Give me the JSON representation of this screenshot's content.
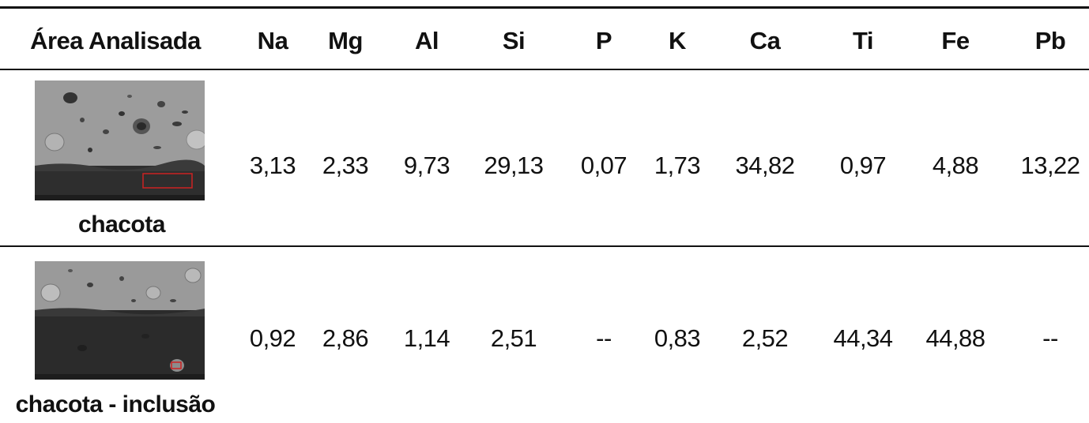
{
  "table": {
    "headers": [
      "Área Analisada",
      "Na",
      "Mg",
      "Al",
      "Si",
      "P",
      "K",
      "Ca",
      "Ti",
      "Fe",
      "Pb"
    ],
    "rows": [
      {
        "label": "chacota",
        "image_description_icon": "sem-micrograph-icon",
        "values": [
          "3,13",
          "2,33",
          "9,73",
          "29,13",
          "0,07",
          "1,73",
          "34,82",
          "0,97",
          "4,88",
          "13,22"
        ]
      },
      {
        "label": "chacota - inclusão",
        "image_description_icon": "sem-micrograph-icon",
        "values": [
          "0,92",
          "2,86",
          "1,14",
          "2,51",
          "--",
          "0,83",
          "2,52",
          "44,34",
          "44,88",
          "--"
        ]
      }
    ]
  },
  "colors": {
    "rule": "#111111",
    "highlight_box": "#cc2222"
  }
}
